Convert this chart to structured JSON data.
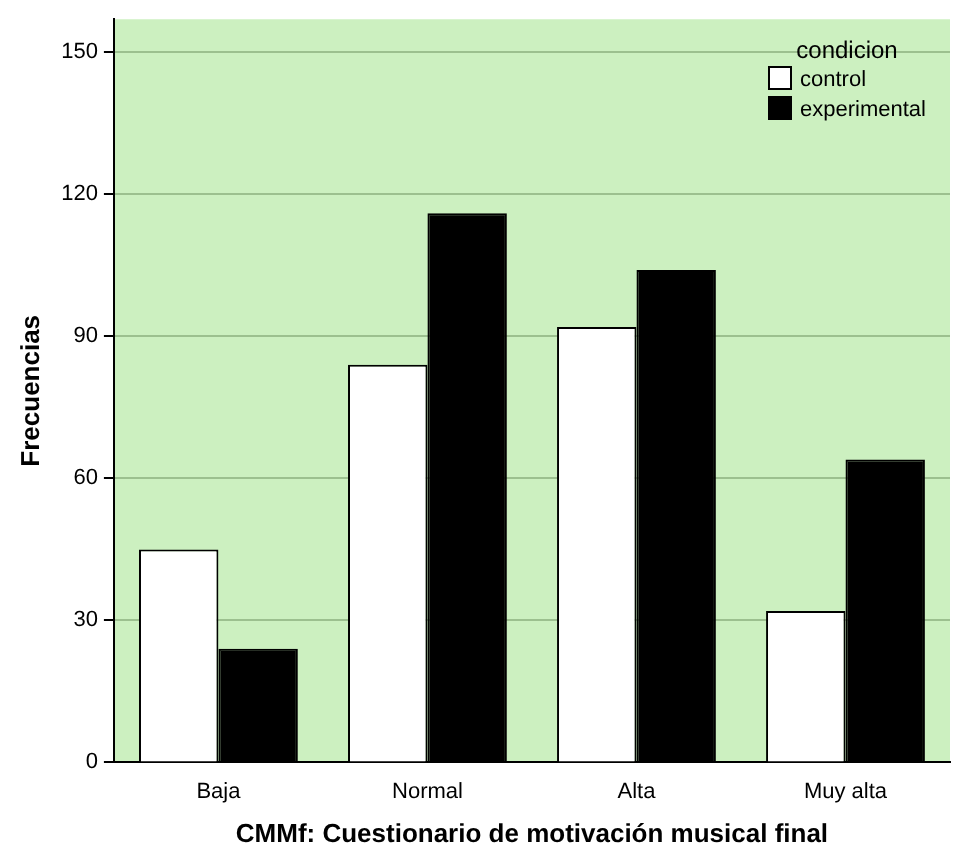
{
  "chart_data": {
    "type": "bar",
    "xlabel": "CMMf: Cuestionario de motivación musical final",
    "ylabel": "Frecuencias",
    "legend_title": "condicion",
    "categories": [
      "Baja",
      "Normal",
      "Alta",
      "Muy alta"
    ],
    "series": [
      {
        "name": "control",
        "color": "#ffffff",
        "values": [
          45,
          84,
          92,
          32
        ]
      },
      {
        "name": "experimental",
        "color": "#000000",
        "values": [
          24,
          116,
          104,
          64
        ]
      }
    ],
    "ylim": [
      0,
      157
    ],
    "yticks": [
      0,
      30,
      60,
      90,
      120,
      150
    ],
    "grid": "y",
    "legend": "top right"
  }
}
